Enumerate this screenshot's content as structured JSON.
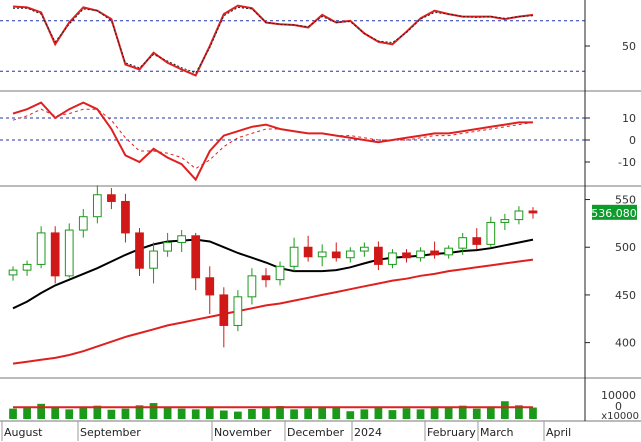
{
  "chart_data": {
    "type": "candlestick",
    "title": "",
    "x_labels": [
      "August",
      "September",
      "November",
      "December",
      "2024",
      "February",
      "March",
      "April"
    ],
    "price_panel": {
      "ylim": [
        365,
        560
      ],
      "y_ticks": [
        "550",
        "500",
        "450",
        "400"
      ],
      "last_price_label": "536.080",
      "candles_weekly_approx": [
        {
          "o": 471,
          "h": 480,
          "l": 465,
          "c": 476
        },
        {
          "o": 476,
          "h": 486,
          "l": 470,
          "c": 482
        },
        {
          "o": 482,
          "h": 522,
          "l": 478,
          "c": 515
        },
        {
          "o": 515,
          "h": 522,
          "l": 462,
          "c": 470
        },
        {
          "o": 470,
          "h": 525,
          "l": 468,
          "c": 518
        },
        {
          "o": 518,
          "h": 540,
          "l": 510,
          "c": 532
        },
        {
          "o": 532,
          "h": 565,
          "l": 525,
          "c": 555
        },
        {
          "o": 555,
          "h": 562,
          "l": 540,
          "c": 548
        },
        {
          "o": 548,
          "h": 556,
          "l": 505,
          "c": 515
        },
        {
          "o": 515,
          "h": 520,
          "l": 470,
          "c": 478
        },
        {
          "o": 478,
          "h": 505,
          "l": 462,
          "c": 496
        },
        {
          "o": 496,
          "h": 515,
          "l": 490,
          "c": 505
        },
        {
          "o": 505,
          "h": 518,
          "l": 495,
          "c": 512
        },
        {
          "o": 512,
          "h": 515,
          "l": 455,
          "c": 468
        },
        {
          "o": 468,
          "h": 480,
          "l": 430,
          "c": 450
        },
        {
          "o": 450,
          "h": 458,
          "l": 395,
          "c": 418
        },
        {
          "o": 418,
          "h": 455,
          "l": 412,
          "c": 448
        },
        {
          "o": 448,
          "h": 478,
          "l": 440,
          "c": 470
        },
        {
          "o": 470,
          "h": 478,
          "l": 458,
          "c": 466
        },
        {
          "o": 466,
          "h": 485,
          "l": 460,
          "c": 480
        },
        {
          "o": 480,
          "h": 510,
          "l": 475,
          "c": 500
        },
        {
          "o": 500,
          "h": 512,
          "l": 485,
          "c": 490
        },
        {
          "o": 490,
          "h": 503,
          "l": 480,
          "c": 495
        },
        {
          "o": 495,
          "h": 505,
          "l": 485,
          "c": 489
        },
        {
          "o": 489,
          "h": 500,
          "l": 484,
          "c": 496
        },
        {
          "o": 496,
          "h": 505,
          "l": 490,
          "c": 500
        },
        {
          "o": 500,
          "h": 506,
          "l": 476,
          "c": 482
        },
        {
          "o": 482,
          "h": 498,
          "l": 478,
          "c": 494
        },
        {
          "o": 494,
          "h": 498,
          "l": 484,
          "c": 489
        },
        {
          "o": 489,
          "h": 500,
          "l": 485,
          "c": 496
        },
        {
          "o": 496,
          "h": 506,
          "l": 488,
          "c": 492
        },
        {
          "o": 492,
          "h": 502,
          "l": 488,
          "c": 499
        },
        {
          "o": 499,
          "h": 515,
          "l": 492,
          "c": 510
        },
        {
          "o": 510,
          "h": 520,
          "l": 498,
          "c": 503
        },
        {
          "o": 503,
          "h": 532,
          "l": 500,
          "c": 526
        },
        {
          "o": 526,
          "h": 535,
          "l": 518,
          "c": 529
        },
        {
          "o": 529,
          "h": 543,
          "l": 524,
          "c": 538
        },
        {
          "o": 538,
          "h": 542,
          "l": 530,
          "c": 536
        }
      ],
      "series": [
        {
          "color": "#000000",
          "values": [
            436,
            443,
            452,
            460,
            466,
            472,
            478,
            485,
            492,
            498,
            503,
            506,
            507,
            508,
            506,
            500,
            494,
            489,
            484,
            478,
            475,
            475,
            475,
            476,
            479,
            483,
            487,
            489,
            490,
            491,
            493,
            494,
            496,
            497,
            499,
            502,
            505,
            508
          ]
        },
        {
          "color": "#e02020",
          "values": [
            378,
            380,
            382,
            384,
            387,
            391,
            396,
            401,
            406,
            410,
            414,
            418,
            421,
            424,
            427,
            430,
            433,
            436,
            439,
            441,
            444,
            447,
            450,
            453,
            456,
            459,
            462,
            465,
            467,
            470,
            472,
            475,
            477,
            479,
            481,
            483,
            485,
            487
          ]
        }
      ]
    },
    "rsi_panel": {
      "ylim": [
        0,
        100
      ],
      "y_ticks": [
        "50"
      ],
      "ref_lines": [
        80,
        20
      ],
      "series": [
        {
          "color": "#e02020",
          "values": [
            97,
            96,
            90,
            52,
            78,
            96,
            92,
            82,
            28,
            22,
            42,
            30,
            22,
            15,
            50,
            88,
            98,
            95,
            78,
            76,
            75,
            72,
            87,
            78,
            80,
            65,
            55,
            52,
            67,
            83,
            92,
            88,
            85,
            85,
            85,
            82,
            85,
            87
          ]
        },
        {
          "color": "#222222",
          "values": [
            95,
            95,
            88,
            55,
            76,
            94,
            92,
            80,
            30,
            24,
            40,
            32,
            24,
            18,
            48,
            86,
            96,
            94,
            78,
            76,
            75,
            73,
            85,
            78,
            79,
            65,
            56,
            54,
            66,
            82,
            90,
            88,
            85,
            84,
            85,
            83,
            85,
            86
          ]
        }
      ]
    },
    "macd_panel": {
      "ylim": [
        -20,
        20
      ],
      "y_ticks": [
        "10",
        "0",
        "-10"
      ],
      "ref_lines": [
        0,
        10
      ],
      "series": [
        {
          "color": "#e02020",
          "values": [
            12,
            14,
            17,
            10,
            14,
            17,
            14,
            5,
            -7,
            -10,
            -4,
            -8,
            -11,
            -18,
            -5,
            2,
            4,
            6,
            7,
            5,
            4,
            3,
            3,
            2,
            1,
            0,
            -1,
            0,
            1,
            2,
            3,
            3,
            4,
            5,
            6,
            7,
            8,
            8
          ]
        },
        {
          "color": "#e02020",
          "dash": true,
          "values": [
            9,
            11,
            14,
            11,
            12,
            14,
            14,
            9,
            1,
            -5,
            -5,
            -6,
            -8,
            -13,
            -9,
            -3,
            1,
            3,
            5,
            5,
            4,
            3,
            3,
            2,
            2,
            1,
            0,
            0,
            0,
            1,
            2,
            2,
            3,
            4,
            5,
            6,
            7,
            8
          ]
        }
      ]
    },
    "volume_panel": {
      "y_ticks": [
        "10000",
        "0"
      ],
      "unit_label": "x10000",
      "volume_ma": 3200,
      "values": [
        2800,
        3300,
        4100,
        3000,
        2600,
        3100,
        3600,
        2500,
        2800,
        3700,
        4300,
        3200,
        2800,
        2600,
        3100,
        2300,
        2000,
        2700,
        3200,
        3500,
        2600,
        2900,
        3000,
        3100,
        2100,
        2600,
        3300,
        2400,
        2900,
        2600,
        3400,
        3100,
        3600,
        2800,
        3400,
        4800,
        3700,
        3100
      ]
    }
  }
}
